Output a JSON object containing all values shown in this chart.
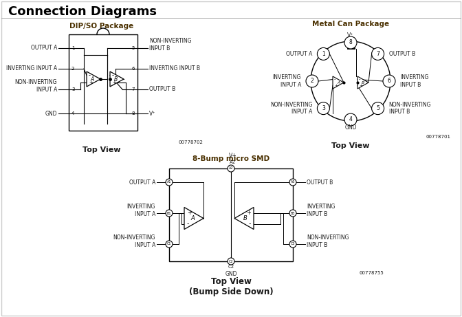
{
  "title": "Connection Diagrams",
  "bg_color": "#ffffff",
  "border_color": "#cccccc",
  "text_color": "#1a1a1a",
  "title_color": "#000000",
  "section_title_color": "#4a3000",
  "dip_title": "DIP/SO Package",
  "can_title": "Metal Can Package",
  "smd_title": "8-Bump micro SMD",
  "dip_code": "00778702",
  "can_code": "00778701",
  "smd_code": "00778755",
  "dip_caption": "Top View",
  "can_caption": "Top View",
  "smd_caption1": "Top View",
  "smd_caption2": "(Bump Side Down)"
}
